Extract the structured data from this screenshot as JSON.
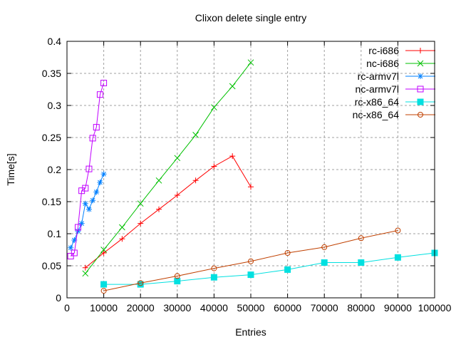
{
  "chart_data": {
    "type": "line",
    "title": "Clixon delete single entry",
    "xlabel": "Entries",
    "ylabel": "Time[s]",
    "xlim": [
      0,
      100000
    ],
    "ylim": [
      0,
      0.4
    ],
    "xticks": [
      "0",
      "10000",
      "20000",
      "30000",
      "40000",
      "50000",
      "60000",
      "70000",
      "80000",
      "90000",
      "100000"
    ],
    "yticks": [
      "0",
      "0.05",
      "0.1",
      "0.15",
      "0.2",
      "0.25",
      "0.3",
      "0.35",
      "0.4"
    ],
    "grid": true,
    "legend_position": "top-right",
    "series": [
      {
        "name": "rc-i686",
        "color": "#ff0000",
        "marker": "plus",
        "x": [
          5000,
          10000,
          15000,
          20000,
          25000,
          30000,
          35000,
          40000,
          45000,
          50000
        ],
        "y": [
          0.047,
          0.07,
          0.092,
          0.116,
          0.138,
          0.16,
          0.183,
          0.205,
          0.221,
          0.173
        ]
      },
      {
        "name": "nc-i686",
        "color": "#00c000",
        "marker": "cross",
        "x": [
          5000,
          10000,
          15000,
          20000,
          25000,
          30000,
          35000,
          40000,
          45000,
          50000
        ],
        "y": [
          0.038,
          0.075,
          0.11,
          0.147,
          0.183,
          0.218,
          0.254,
          0.297,
          0.33,
          0.367
        ]
      },
      {
        "name": "rc-armv7l",
        "color": "#0080ff",
        "marker": "star",
        "x": [
          1000,
          2000,
          3000,
          4000,
          5000,
          6000,
          7000,
          8000,
          9000,
          10000
        ],
        "y": [
          0.078,
          0.09,
          0.104,
          0.116,
          0.147,
          0.138,
          0.152,
          0.165,
          0.18,
          0.193
        ]
      },
      {
        "name": "nc-armv7l",
        "color": "#c000ff",
        "marker": "open-square",
        "x": [
          1000,
          2000,
          3000,
          4000,
          5000,
          6000,
          7000,
          8000,
          9000,
          10000
        ],
        "y": [
          0.065,
          0.07,
          0.11,
          0.167,
          0.171,
          0.201,
          0.249,
          0.266,
          0.317,
          0.335
        ]
      },
      {
        "name": "rc-x86_64",
        "color": "#00e0e0",
        "marker": "filled-square",
        "x": [
          10000,
          20000,
          30000,
          40000,
          50000,
          60000,
          70000,
          80000,
          90000,
          100000
        ],
        "y": [
          0.021,
          0.021,
          0.026,
          0.032,
          0.036,
          0.044,
          0.055,
          0.055,
          0.063,
          0.07
        ]
      },
      {
        "name": "nc-x86_64",
        "color": "#c04000",
        "marker": "open-circle",
        "x": [
          10000,
          20000,
          30000,
          40000,
          50000,
          60000,
          70000,
          80000,
          90000
        ],
        "y": [
          0.011,
          0.023,
          0.034,
          0.046,
          0.057,
          0.07,
          0.079,
          0.093,
          0.105
        ]
      }
    ]
  }
}
